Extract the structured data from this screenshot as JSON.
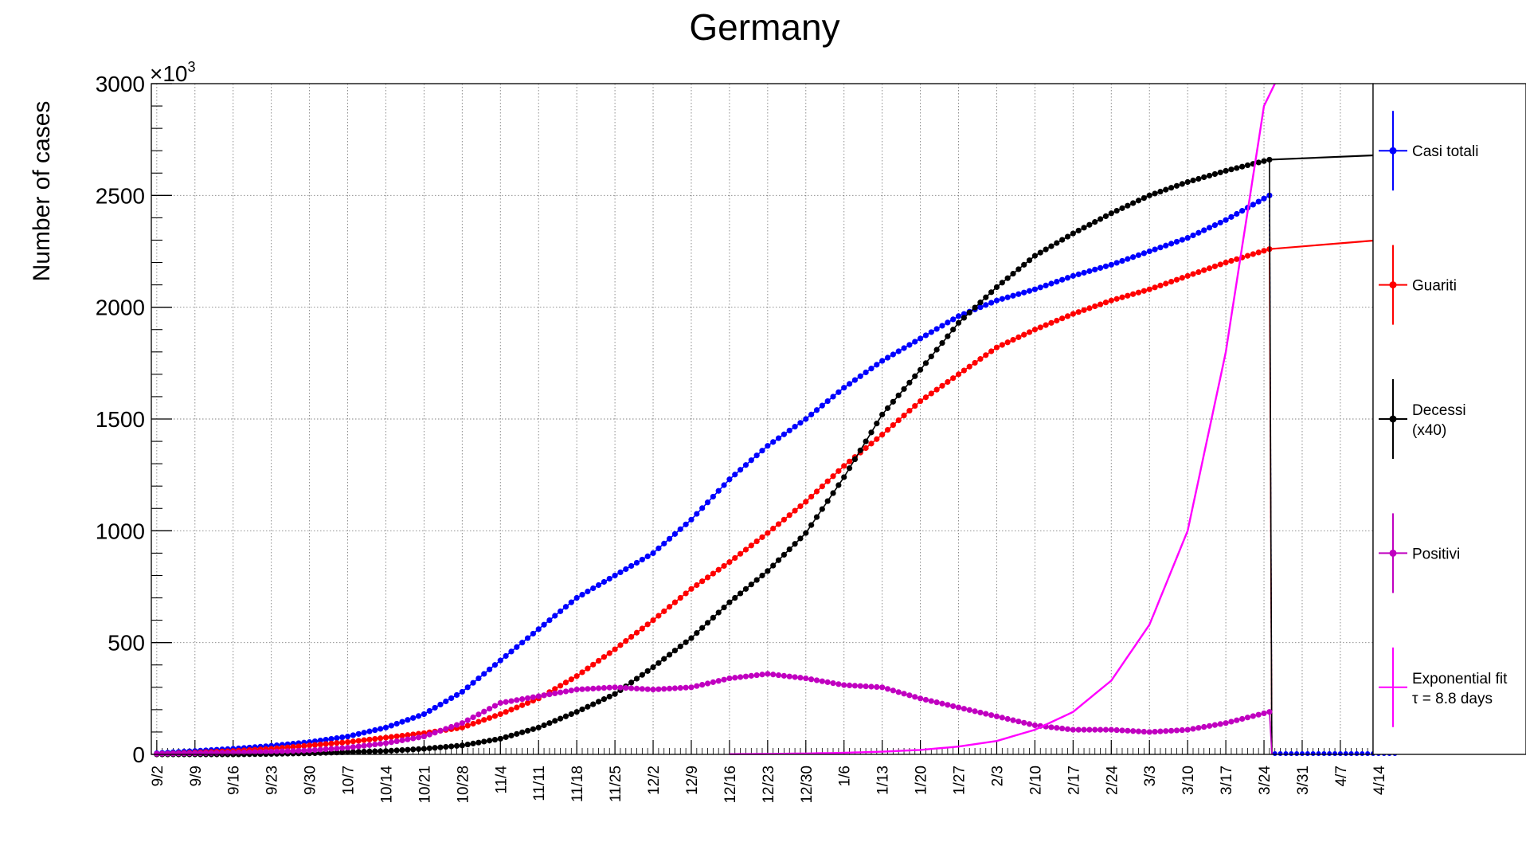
{
  "chart_data": {
    "type": "line",
    "title": "Germany",
    "ylabel": "Number of cases",
    "xlabel": "",
    "y_multiplier_label": "×10",
    "y_multiplier_exponent": "3",
    "ylim": [
      0,
      3000
    ],
    "y_ticks": [
      0,
      500,
      1000,
      1500,
      2000,
      2500,
      3000
    ],
    "y_tick_labels": [
      "0",
      "500",
      "1000",
      "1500",
      "2000",
      "2500",
      "3000"
    ],
    "xlim_day_range": [
      0,
      224
    ],
    "x_tick_labels": [
      "9/2",
      "9/9",
      "9/16",
      "9/23",
      "9/30",
      "10/7",
      "10/14",
      "10/21",
      "10/28",
      "11/4",
      "11/11",
      "11/18",
      "11/25",
      "12/2",
      "12/9",
      "12/16",
      "12/23",
      "12/30",
      "1/6",
      "1/13",
      "1/20",
      "1/27",
      "2/3",
      "2/10",
      "2/17",
      "2/24",
      "3/3",
      "3/10",
      "3/17",
      "3/24",
      "3/31",
      "4/7",
      "4/14"
    ],
    "grid": true,
    "legend_position": "right",
    "series": [
      {
        "name": "Casi totali",
        "color": "#0000ff",
        "marker": "circle",
        "x": [
          "9/2",
          "9/9",
          "9/16",
          "9/23",
          "9/30",
          "10/7",
          "10/14",
          "10/21",
          "10/28",
          "11/4",
          "11/11",
          "11/18",
          "11/25",
          "12/2",
          "12/9",
          "12/16",
          "12/23",
          "12/30",
          "1/6",
          "1/13",
          "1/20",
          "1/27",
          "2/3",
          "2/10",
          "2/17",
          "2/24",
          "3/3",
          "3/10",
          "3/17",
          "3/25"
        ],
        "values": [
          5,
          15,
          25,
          38,
          55,
          80,
          120,
          180,
          280,
          420,
          560,
          700,
          800,
          900,
          1050,
          1230,
          1380,
          1500,
          1640,
          1760,
          1860,
          1960,
          2030,
          2080,
          2140,
          2190,
          2250,
          2310,
          2390,
          2500
        ]
      },
      {
        "name": "Guariti",
        "color": "#ff0000",
        "marker": "circle",
        "x": [
          "9/2",
          "9/9",
          "9/16",
          "9/23",
          "9/30",
          "10/7",
          "10/14",
          "10/21",
          "10/28",
          "11/4",
          "11/11",
          "11/18",
          "11/25",
          "12/2",
          "12/9",
          "12/16",
          "12/23",
          "12/30",
          "1/6",
          "1/13",
          "1/20",
          "1/27",
          "2/3",
          "2/10",
          "2/17",
          "2/24",
          "3/3",
          "3/10",
          "3/17",
          "3/25"
        ],
        "values": [
          2,
          8,
          15,
          25,
          40,
          55,
          75,
          95,
          120,
          180,
          250,
          350,
          470,
          600,
          740,
          860,
          990,
          1130,
          1290,
          1430,
          1580,
          1700,
          1820,
          1900,
          1970,
          2030,
          2080,
          2140,
          2200,
          2260
        ]
      },
      {
        "name": "Decessi (x40)",
        "color": "#000000",
        "marker": "circle",
        "x": [
          "9/2",
          "9/9",
          "9/16",
          "9/23",
          "9/30",
          "10/7",
          "10/14",
          "10/21",
          "10/28",
          "11/4",
          "11/11",
          "11/18",
          "11/25",
          "12/2",
          "12/9",
          "12/16",
          "12/23",
          "12/30",
          "1/6",
          "1/13",
          "1/20",
          "1/27",
          "2/3",
          "2/10",
          "2/17",
          "2/24",
          "3/3",
          "3/10",
          "3/17",
          "3/25"
        ],
        "values": [
          0,
          0,
          0,
          2,
          5,
          10,
          15,
          25,
          40,
          70,
          120,
          190,
          270,
          390,
          520,
          680,
          820,
          990,
          1240,
          1520,
          1720,
          1930,
          2090,
          2230,
          2330,
          2420,
          2500,
          2560,
          2610,
          2660
        ]
      },
      {
        "name": "Positivi",
        "color": "#c000c0",
        "marker": "circle",
        "x": [
          "9/2",
          "9/9",
          "9/16",
          "9/23",
          "9/30",
          "10/7",
          "10/14",
          "10/21",
          "10/28",
          "11/4",
          "11/11",
          "11/18",
          "11/25",
          "12/2",
          "12/9",
          "12/16",
          "12/23",
          "12/30",
          "1/6",
          "1/13",
          "1/20",
          "1/27",
          "2/3",
          "2/10",
          "2/17",
          "2/24",
          "3/3",
          "3/10",
          "3/17",
          "3/25"
        ],
        "values": [
          3,
          5,
          8,
          12,
          18,
          30,
          50,
          80,
          140,
          230,
          260,
          290,
          300,
          290,
          300,
          340,
          360,
          340,
          310,
          300,
          250,
          210,
          170,
          130,
          110,
          110,
          100,
          110,
          140,
          190
        ]
      },
      {
        "name": "Exponential fit",
        "annotation": "τ₂ = 8.8 days",
        "color": "#ff00ff",
        "marker": "none",
        "x": [
          "12/16",
          "12/23",
          "12/30",
          "1/6",
          "1/13",
          "1/20",
          "1/27",
          "2/3",
          "2/10",
          "2/17",
          "2/24",
          "3/3",
          "3/10",
          "3/17",
          "3/24",
          "3/26"
        ],
        "values": [
          1,
          2,
          4,
          7,
          12,
          20,
          35,
          60,
          110,
          190,
          330,
          580,
          1000,
          1800,
          2900,
          3000
        ]
      }
    ],
    "projection_lines": [
      {
        "name": "Decessi projection",
        "color": "#000000",
        "x": [
          "3/25",
          "4/14"
        ],
        "values": [
          2660,
          2680
        ]
      },
      {
        "name": "Guariti projection",
        "color": "#ff0000",
        "x": [
          "3/25",
          "4/14"
        ],
        "values": [
          2260,
          2300
        ]
      }
    ],
    "legend": [
      {
        "label": "Casi totali",
        "color": "#0000ff",
        "marker": true
      },
      {
        "label": "Guariti",
        "color": "#ff0000",
        "marker": true
      },
      {
        "label": "Decessi",
        "label2": "(x40)",
        "color": "#000000",
        "marker": true
      },
      {
        "label": "Positivi",
        "color": "#c000c0",
        "marker": true
      },
      {
        "label": "Exponential fit",
        "label2": "τ = 8.8 days",
        "color": "#ff00ff",
        "marker": false
      }
    ]
  }
}
